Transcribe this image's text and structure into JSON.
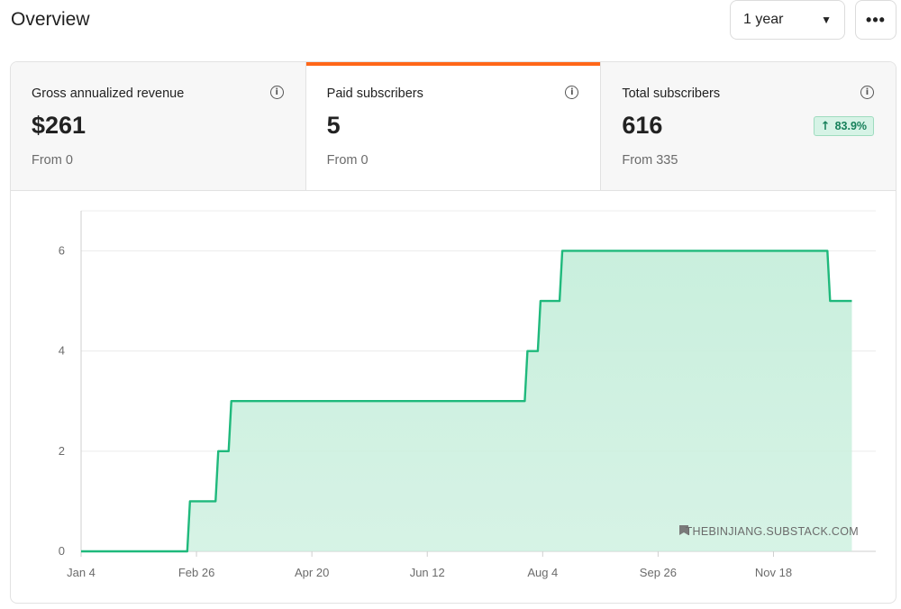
{
  "header": {
    "title": "Overview",
    "range": {
      "selected": "1 year",
      "caret_icon": "caret-down-icon"
    },
    "more_icon": "more-horizontal-icon",
    "more_glyph": "•••"
  },
  "stats": [
    {
      "label": "Gross annualized revenue",
      "value": "$261",
      "from": "From 0",
      "active": false
    },
    {
      "label": "Paid subscribers",
      "value": "5",
      "from": "From 0",
      "active": true
    },
    {
      "label": "Total subscribers",
      "value": "616",
      "from": "From 335",
      "active": false,
      "change": {
        "direction": "up",
        "text": "83.9%"
      }
    }
  ],
  "colors": {
    "accent": "#ff6719",
    "line": "#1fb97c",
    "fill": "#c9efdd",
    "badge_bg": "#d6f3e6",
    "badge_text": "#16805a"
  },
  "watermark": "THEBINJIANG.SUBSTACK.COM",
  "chart_data": {
    "type": "area",
    "step": true,
    "x_ticks": [
      "Jan 4",
      "Feb 26",
      "Apr 20",
      "Jun 12",
      "Aug 4",
      "Sep 26",
      "Nov 18"
    ],
    "ylim": [
      0,
      6.8
    ],
    "y_ticks": [
      0,
      2,
      4,
      6
    ],
    "grid": true,
    "series": [
      {
        "points": [
          {
            "x": "Jan 4",
            "y": 0
          },
          {
            "x": "Feb 23",
            "y": 1
          },
          {
            "x": "Mar 8",
            "y": 2
          },
          {
            "x": "Mar 14",
            "y": 3
          },
          {
            "x": "Jul 28",
            "y": 4
          },
          {
            "x": "Aug 3",
            "y": 5
          },
          {
            "x": "Aug 13",
            "y": 6
          },
          {
            "x": "Dec 14",
            "y": 5
          },
          {
            "x": "Dec 24",
            "y": 5
          }
        ]
      }
    ]
  }
}
